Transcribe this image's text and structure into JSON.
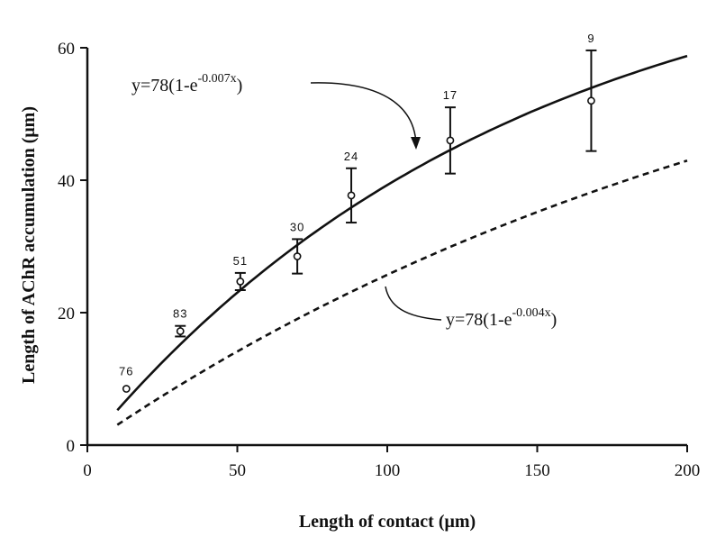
{
  "chart_data": {
    "type": "scatter",
    "title": "",
    "xlabel": "Length of contact (μm)",
    "ylabel": "Length of AChR accumulation (μm)",
    "xlim": [
      0,
      200
    ],
    "ylim": [
      0,
      60
    ],
    "x_ticks": [
      "0",
      "50",
      "100",
      "150",
      "200"
    ],
    "y_ticks": [
      "0",
      "20",
      "40",
      "60"
    ],
    "grid": false,
    "series": [
      {
        "type": "scatter",
        "marker": "open-circle",
        "points": [
          {
            "x": 13,
            "y": 8.5,
            "err": 0,
            "n": "76"
          },
          {
            "x": 31,
            "y": 17.2,
            "err": 0.8,
            "n": "83"
          },
          {
            "x": 51,
            "y": 24.7,
            "err": 1.3,
            "n": "51"
          },
          {
            "x": 70,
            "y": 28.5,
            "err": 2.6,
            "n": "30"
          },
          {
            "x": 88,
            "y": 37.7,
            "err": 4.1,
            "n": "24"
          },
          {
            "x": 121,
            "y": 46.0,
            "err": 5.0,
            "n": "17"
          },
          {
            "x": 168,
            "y": 52.0,
            "err": 7.6,
            "n": "9"
          }
        ]
      },
      {
        "type": "line",
        "style": "solid",
        "equation": {
          "base": "y=78(1-e",
          "exp": "-0.007x",
          "tail": ")"
        },
        "a": 78,
        "k": 0.007,
        "x_range": [
          10,
          200
        ]
      },
      {
        "type": "line",
        "style": "dashed",
        "equation": {
          "base": "y=78(1-e",
          "exp": "-0.004x",
          "tail": ")"
        },
        "a": 78,
        "k": 0.004,
        "x_range": [
          10,
          200
        ]
      }
    ]
  }
}
